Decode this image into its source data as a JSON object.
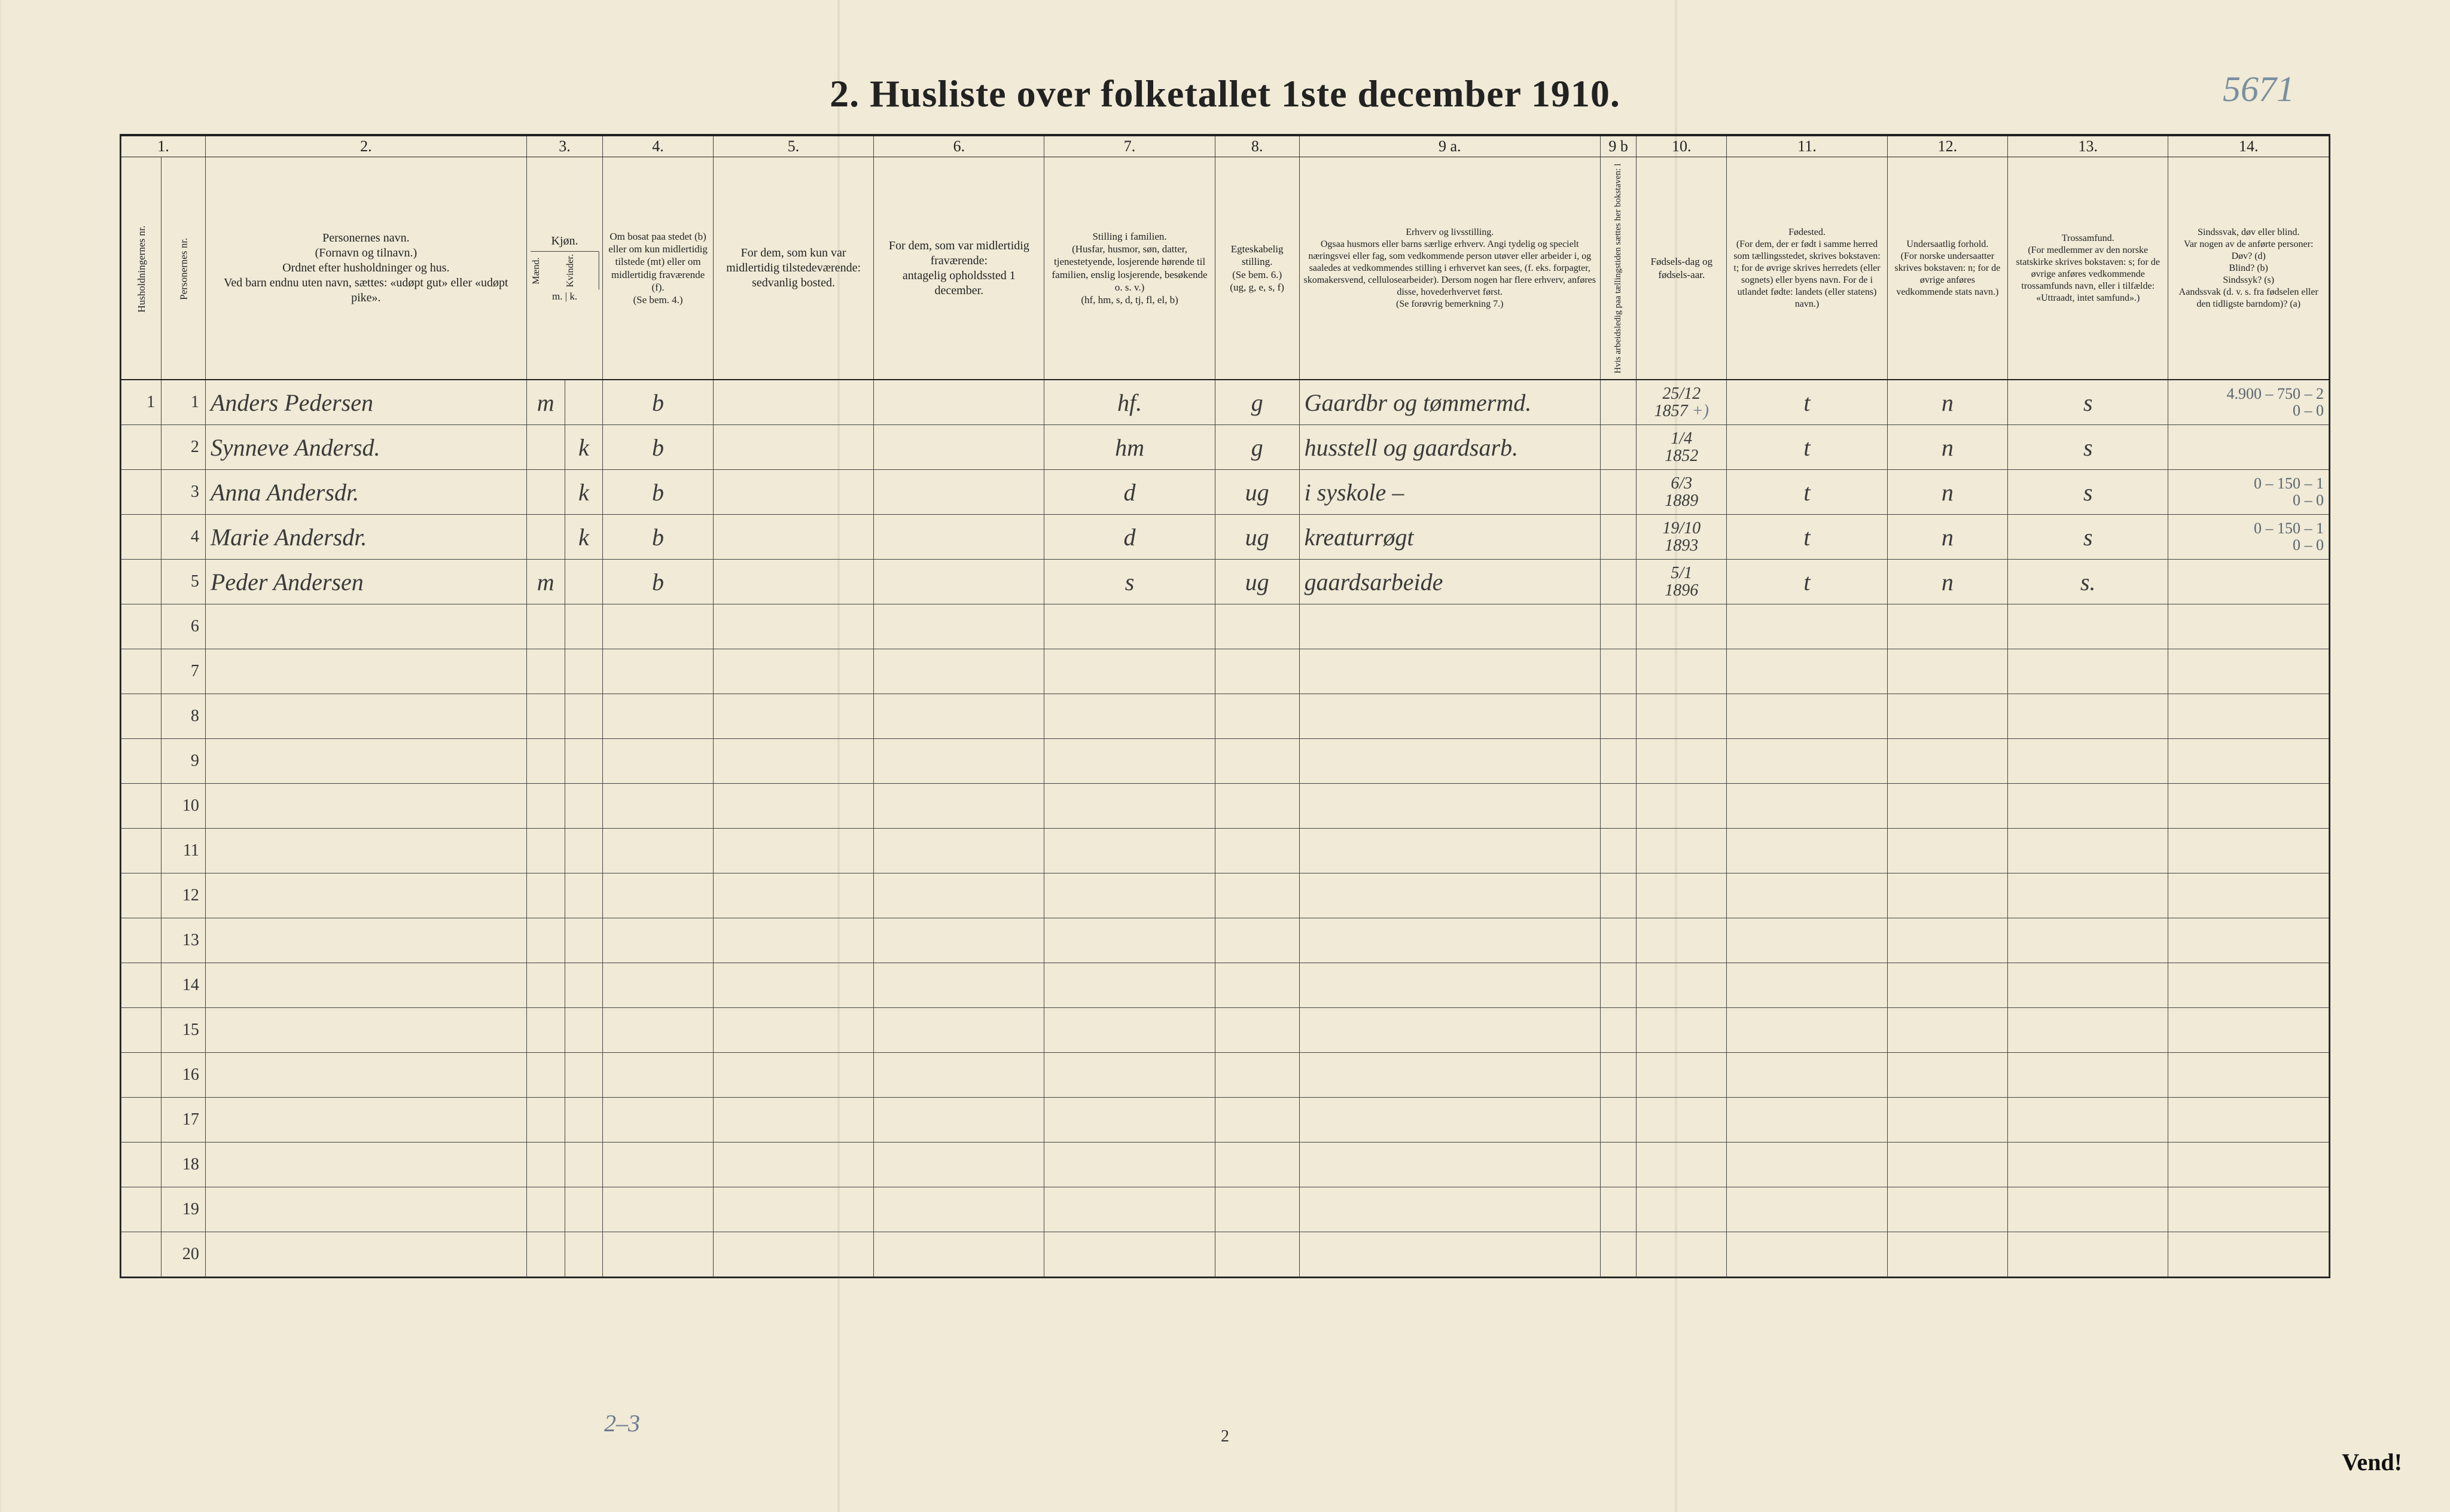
{
  "title": "2.  Husliste over folketallet 1ste december 1910.",
  "page_handwritten": "5671",
  "footer_left_note": "2–3",
  "footer_center": "2",
  "footer_right": "Vend!",
  "colors": {
    "paper": "#f0ead6",
    "ink": "#222222",
    "rule": "#444444",
    "handwriting": "#3a3a3a",
    "pencil_blue": "#6a7a90"
  },
  "columns": {
    "numbers": [
      "1.",
      "2.",
      "3.",
      "4.",
      "5.",
      "6.",
      "7.",
      "8.",
      "9 a.",
      "9 b",
      "10.",
      "11.",
      "12.",
      "13.",
      "14."
    ],
    "widths_pct": [
      2.0,
      2.2,
      16.0,
      3.8,
      5.5,
      8.0,
      8.5,
      8.5,
      4.2,
      15.0,
      1.8,
      4.5,
      8.0,
      6.0,
      8.0,
      8.0
    ],
    "headers": {
      "c1": "Husholdningernes nr.",
      "c1b": "Personernes nr.",
      "c2": "Personernes navn.\n(Fornavn og tilnavn.)\nOrdnet efter husholdninger og hus.\nVed barn endnu uten navn, sættes: «udøpt gut» eller «udøpt pike».",
      "c3": "Kjøn.",
      "c3_sub_m": "Mænd.",
      "c3_sub_k": "Kvinder.",
      "c3_foot": "m. | k.",
      "c4": "Om bosat paa stedet (b) eller om kun midlertidig tilstede (mt) eller om midlertidig fraværende (f).\n(Se bem. 4.)",
      "c5": "For dem, som kun var midlertidig tilstedeværende:\nsedvanlig bosted.",
      "c6": "For dem, som var midlertidig fraværende:\nantagelig opholdssted 1 december.",
      "c7": "Stilling i familien.\n(Husfar, husmor, søn, datter, tjenestetyende, losjerende hørende til familien, enslig losjerende, besøkende o. s. v.)\n(hf, hm, s, d, tj, fl, el, b)",
      "c8": "Egteskabelig stilling.\n(Se bem. 6.)\n(ug, g, e, s, f)",
      "c9a": "Erhverv og livsstilling.\nOgsaa husmors eller barns særlige erhverv. Angi tydelig og specielt næringsvei eller fag, som vedkommende person utøver eller arbeider i, og saaledes at vedkommendes stilling i erhvervet kan sees, (f. eks. forpagter, skomakersvend, cellulosearbeider). Dersom nogen har flere erhverv, anføres disse, hovederhvervet først.\n(Se forøvrig bemerkning 7.)",
      "c9b": "Hvis arbeidsledig paa tællingstiden sættes her bokstaven: l",
      "c10": "Fødsels-dag og fødsels-aar.",
      "c11": "Fødested.\n(For dem, der er født i samme herred som tællingsstedet, skrives bokstaven: t; for de øvrige skrives herredets (eller sognets) eller byens navn. For de i utlandet fødte: landets (eller statens) navn.)",
      "c12": "Undersaatlig forhold.\n(For norske undersaatter skrives bokstaven: n; for de øvrige anføres vedkommende stats navn.)",
      "c13": "Trossamfund.\n(For medlemmer av den norske statskirke skrives bokstaven: s; for de øvrige anføres vedkommende trossamfunds navn, eller i tilfælde: «Uttraadt, intet samfund».)",
      "c14": "Sindssvak, døv eller blind.\nVar nogen av de anførte personer:\nDøv?   (d)\nBlind?  (b)\nSindssyk? (s)\nAandssvak (d. v. s. fra fødselen eller den tidligste barndom)? (a)"
    }
  },
  "row_labels": [
    "1",
    "2",
    "3",
    "4",
    "5",
    "6",
    "7",
    "8",
    "9",
    "10",
    "11",
    "12",
    "13",
    "14",
    "15",
    "16",
    "17",
    "18",
    "19",
    "20"
  ],
  "rows": [
    {
      "hh": "1",
      "pno": "1",
      "name": "Anders Pedersen",
      "sex_m": "m",
      "sex_k": "",
      "residence": "b",
      "c5": "",
      "c6": "",
      "family": "hf.",
      "marital": "g",
      "occupation": "Gaardbr og tømmermd.",
      "c9b": "",
      "birth": "25/12 1857",
      "birth_note": "+)",
      "birthplace": "t",
      "nationality": "n",
      "faith": "s",
      "right_note": "4.900 – 750 – 2\n0 – 0"
    },
    {
      "hh": "",
      "pno": "2",
      "name": "Synneve Andersd.",
      "sex_m": "",
      "sex_k": "k",
      "residence": "b",
      "c5": "",
      "c6": "",
      "family": "hm",
      "marital": "g",
      "occupation": "husstell og gaardsarb.",
      "c9b": "",
      "birth": "1/4 1852",
      "birth_note": "",
      "birthplace": "t",
      "nationality": "n",
      "faith": "s",
      "right_note": ""
    },
    {
      "hh": "",
      "pno": "3",
      "name": "Anna Andersdr.",
      "sex_m": "",
      "sex_k": "k",
      "residence": "b",
      "c5": "",
      "c6": "",
      "family": "d",
      "marital": "ug",
      "occupation": "i syskole –",
      "c9b": "",
      "birth": "6/3 1889",
      "birth_note": "",
      "birthplace": "t",
      "nationality": "n",
      "faith": "s",
      "right_note": "0 – 150 – 1\n0 – 0"
    },
    {
      "hh": "",
      "pno": "4",
      "name": "Marie Andersdr.",
      "sex_m": "",
      "sex_k": "k",
      "residence": "b",
      "c5": "",
      "c6": "",
      "family": "d",
      "marital": "ug",
      "occupation": "kreaturrøgt",
      "c9b": "",
      "birth": "19/10 1893",
      "birth_note": "",
      "birthplace": "t",
      "nationality": "n",
      "faith": "s",
      "right_note": "0 – 150 – 1\n0 – 0"
    },
    {
      "hh": "",
      "pno": "5",
      "name": "Peder Andersen",
      "sex_m": "m",
      "sex_k": "",
      "residence": "b",
      "c5": "",
      "c6": "",
      "family": "s",
      "marital": "ug",
      "occupation": "gaardsarbeide",
      "c9b": "",
      "birth": "5/1 1896",
      "birth_note": "",
      "birthplace": "t",
      "nationality": "n",
      "faith": "s.",
      "right_note": ""
    }
  ],
  "empty_row_count": 15
}
